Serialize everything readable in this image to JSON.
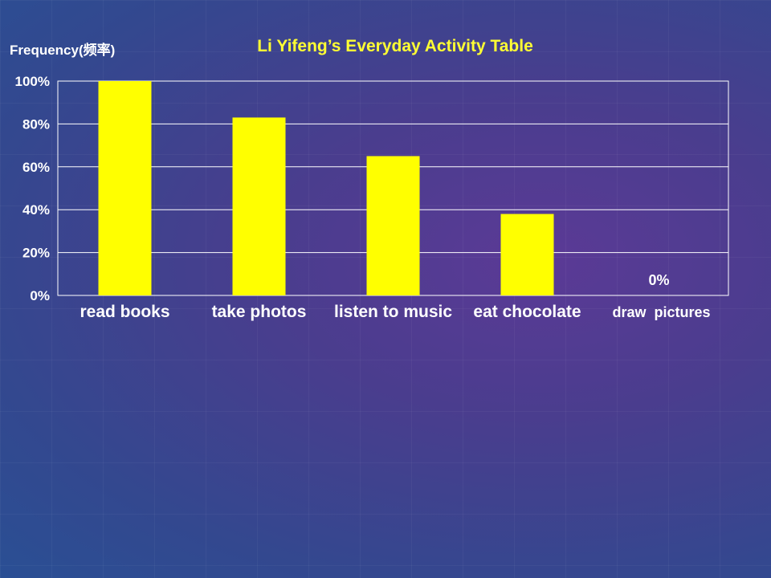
{
  "chart_data": {
    "type": "bar",
    "title": "Li Yifeng’s Everyday Activity Table",
    "ylabel": "Frequency(频率)",
    "xlabel": "",
    "categories": [
      "read books",
      "take photos",
      "listen to music",
      "eat chocolate",
      "draw  pictures"
    ],
    "values": [
      100,
      83,
      65,
      38,
      0
    ],
    "yticks": [
      "0%",
      "20%",
      "40%",
      "60%",
      "80%",
      "100%"
    ],
    "ylim": [
      0,
      100
    ],
    "data_labels": [
      null,
      null,
      null,
      null,
      "0%"
    ],
    "grid": true,
    "legend": "none",
    "bar_color": "#ffff00",
    "title_color": "#ffff33",
    "text_color": "#ffffff"
  }
}
